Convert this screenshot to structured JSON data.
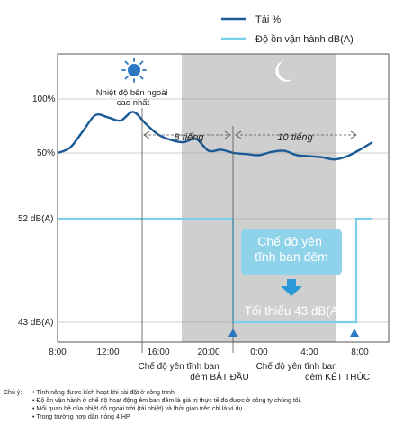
{
  "chart_data": {
    "type": "line",
    "legend_position": "top-right",
    "series": [
      {
        "name": "Tải %",
        "color": "#1a5a96",
        "x": [
          "8:00",
          "9:00",
          "10:00",
          "11:00",
          "12:00",
          "13:00",
          "14:00",
          "15:00",
          "16:00",
          "17:00",
          "18:00",
          "19:00",
          "20:00",
          "21:00",
          "22:00",
          "23:00",
          "0:00",
          "1:00",
          "2:00",
          "3:00",
          "4:00",
          "5:00",
          "6:00",
          "7:00",
          "8:00",
          "9:00"
        ],
        "values": [
          50,
          55,
          70,
          85,
          83,
          80,
          88,
          77,
          67,
          62,
          60,
          63,
          52,
          53,
          50,
          49,
          48,
          51,
          52,
          48,
          47,
          46,
          44,
          47,
          53,
          60
        ]
      },
      {
        "name": "Độ ồn vận hành dB(A)",
        "color": "#7ccfe8",
        "x": [
          "8:00",
          "20:00",
          "20:00",
          "8:00",
          "8:00",
          "9:00"
        ],
        "values": [
          52,
          52,
          43,
          43,
          52,
          52
        ]
      }
    ],
    "y_labels": [
      "100%",
      "50%",
      "52 dB(A)",
      "43 dB(A)"
    ],
    "x_ticks": [
      "8:00",
      "12:00",
      "16:00",
      "20:00",
      "0:00",
      "4:00",
      "8:00"
    ],
    "night_band": {
      "from": "18:00",
      "to": "9:00"
    },
    "annotations": {
      "peak": "Nhiệt độ bên ngoài cao nhất",
      "hours_before": "8 tiếng",
      "hours_after": "10 tiếng",
      "night_mode_title": "Chế độ yên tĩnh ban đêm",
      "min_level": "Tối thiểu 43 dB(A)",
      "start_label": "Chế độ yên tĩnh ban đêm BẮT ĐẦU",
      "end_label": "Chế độ yên tĩnh ban đêm KẾT THÚC"
    }
  },
  "notes": {
    "label": "Chú ý:",
    "items": [
      "Tính năng được kích hoạt khi cài đặt ở công trình",
      "Độ ồn vận hành ở chế độ hoạt động êm ban đêm là giá trị thực tế đo được ở công ty chúng tôi.",
      "Mối quan hệ của nhiệt độ ngoài trời (tải nhiệt) và thời gian trên chỉ là ví dụ.",
      "Trong trường hợp dàn nóng 4 HP."
    ]
  },
  "colors": {
    "load_line": "#1a5a96",
    "noise_line": "#7ccfe8",
    "night_band": "#cfcfcf",
    "callout": "#8fd3ea",
    "sun": "#2a78c2"
  },
  "icons": [
    "sun-icon",
    "moon-icon",
    "down-arrow-icon",
    "start-marker-icon",
    "end-marker-icon"
  ]
}
